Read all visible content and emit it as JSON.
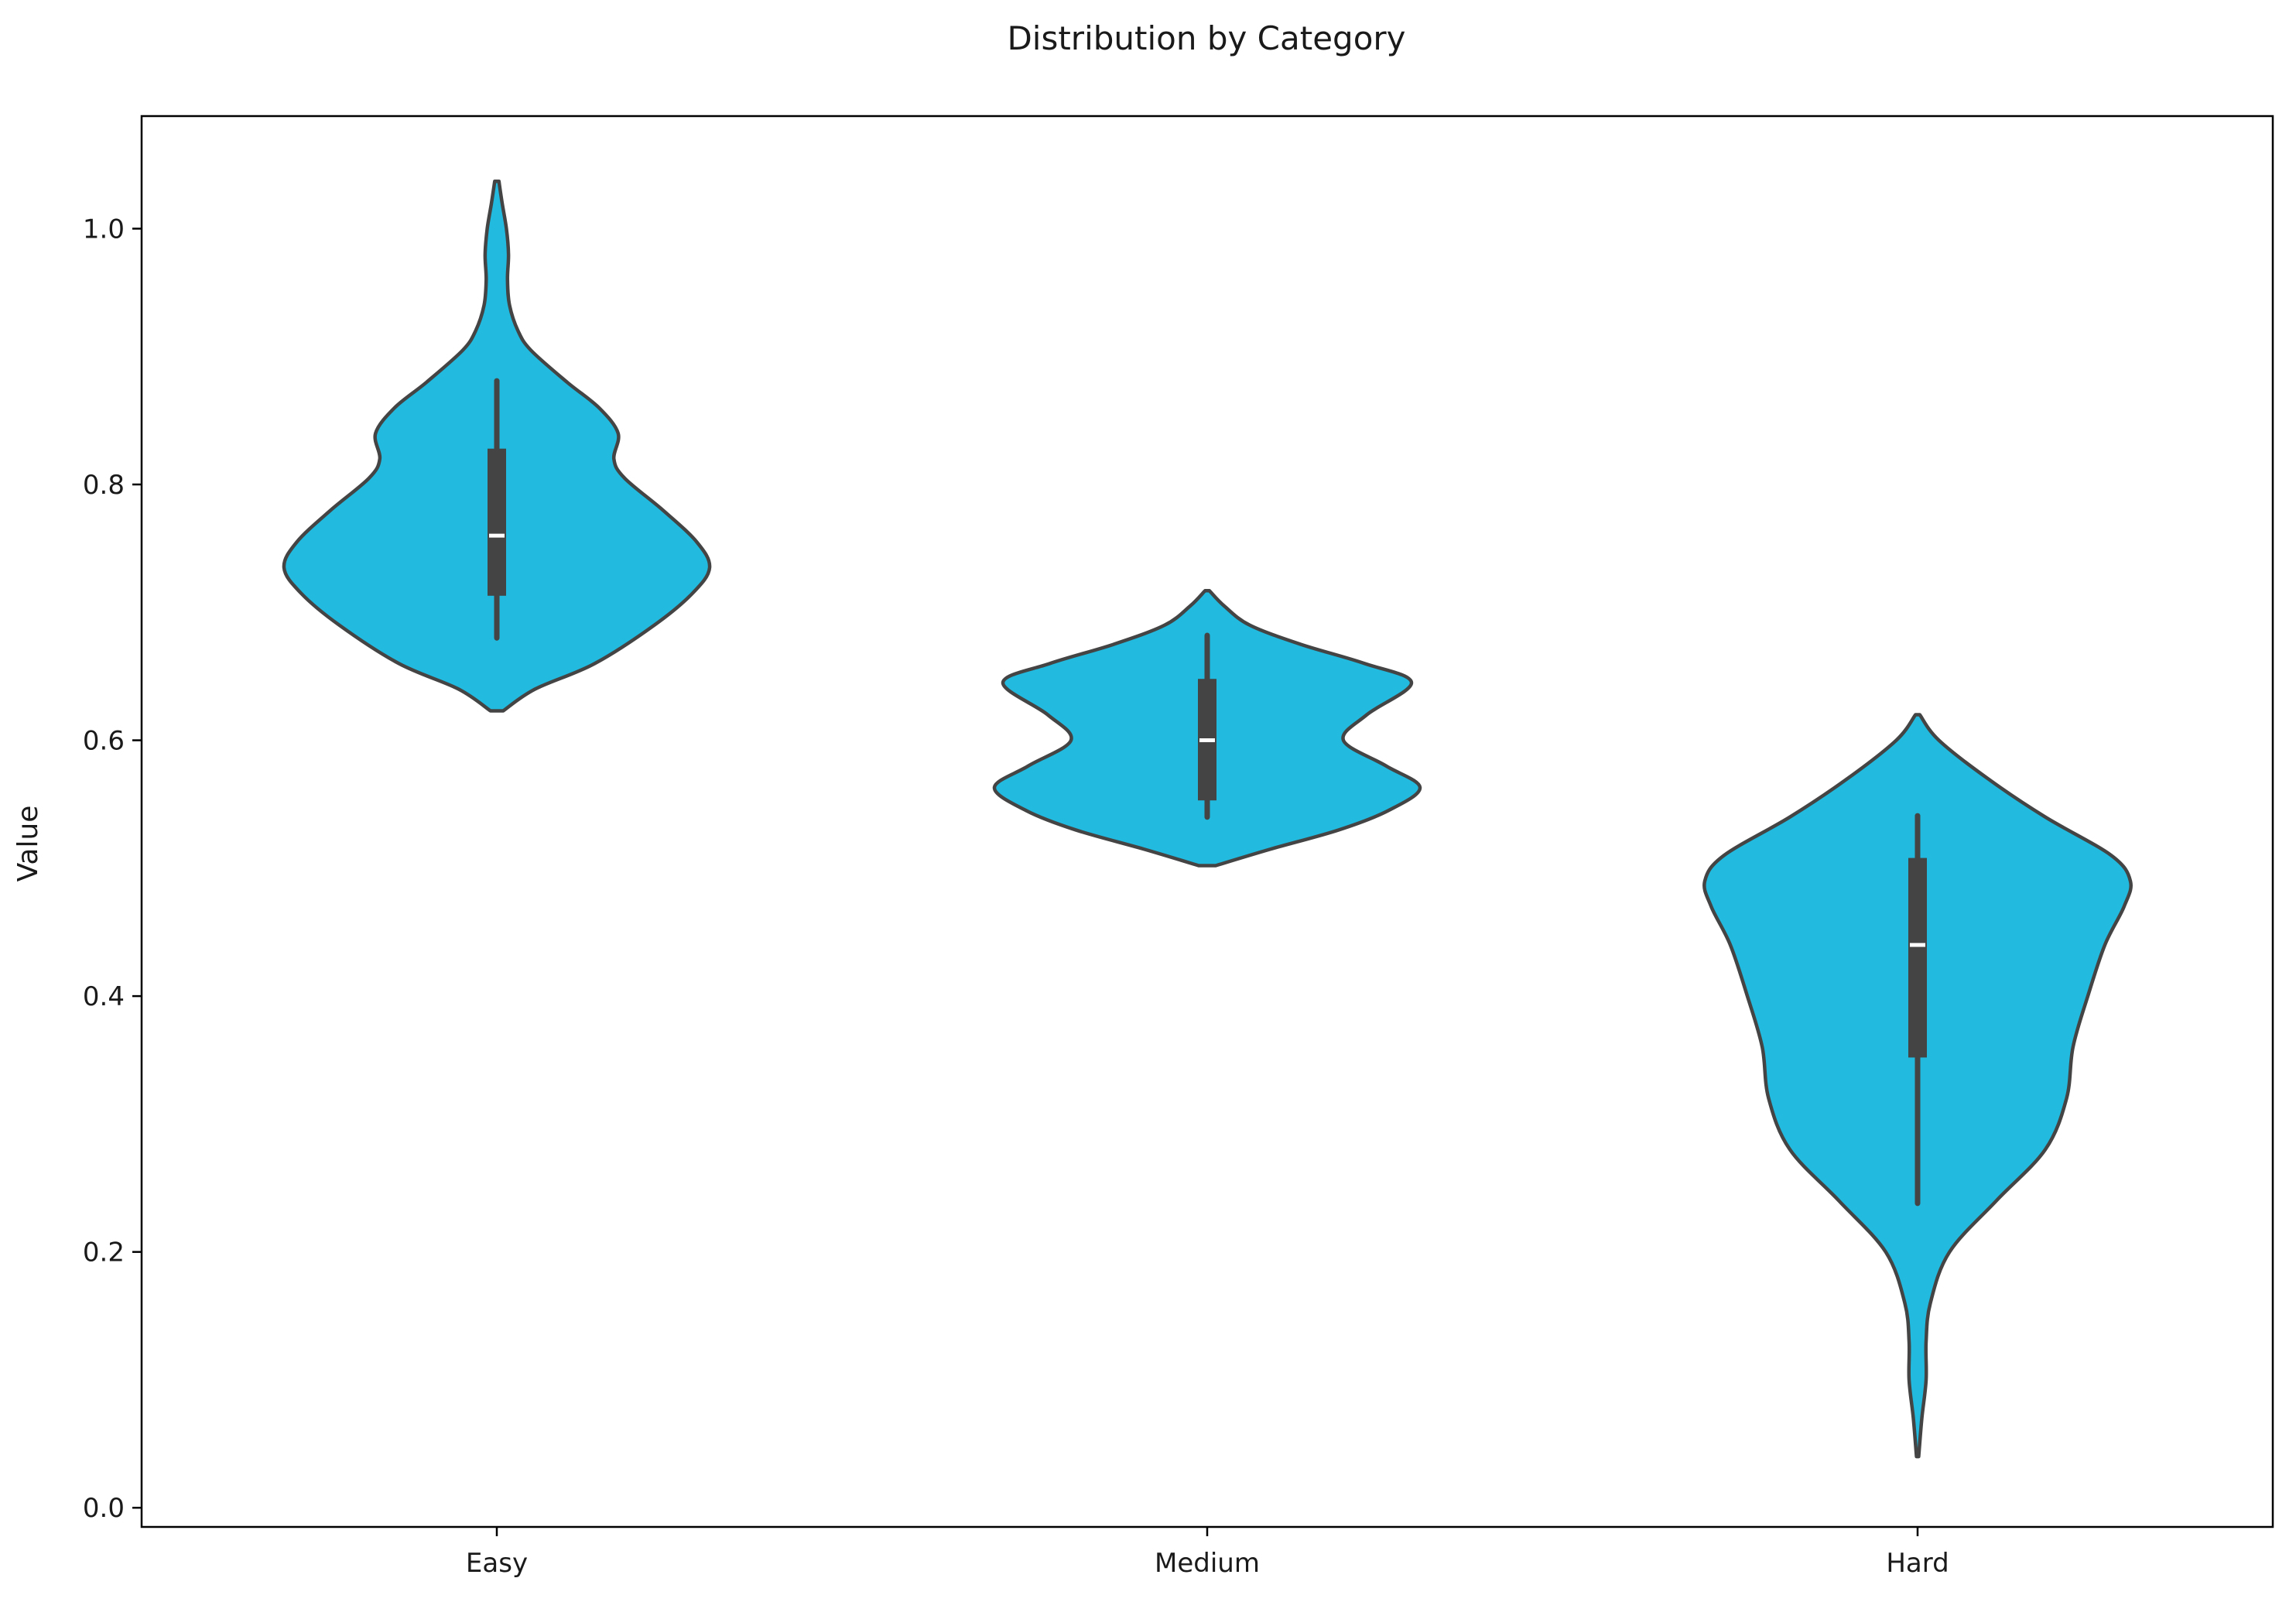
{
  "chart_data": {
    "type": "violin",
    "title": "Distribution by Category",
    "xlabel": "",
    "ylabel": "Value",
    "ylim": [
      -0.015,
      1.088
    ],
    "yticks": [
      0.0,
      0.2,
      0.4,
      0.6,
      0.8,
      1.0
    ],
    "ytick_labels": [
      "0.0",
      "0.2",
      "0.4",
      "0.6",
      "0.8",
      "1.0"
    ],
    "categories": [
      "Easy",
      "Medium",
      "Hard"
    ],
    "grid": false,
    "colors": {
      "fill": "#22bade",
      "edge": "#444444",
      "box": "#444444",
      "median": "#ffffff"
    },
    "violins": [
      {
        "category": "Easy",
        "min": 0.623,
        "max": 1.037,
        "whisker_low": 0.68,
        "q1": 0.713,
        "median": 0.76,
        "q3": 0.828,
        "whisker_high": 0.881,
        "density_profile": [
          [
            0.623,
            0.03
          ],
          [
            0.64,
            0.18
          ],
          [
            0.66,
            0.46
          ],
          [
            0.69,
            0.74
          ],
          [
            0.715,
            0.92
          ],
          [
            0.735,
            1.0
          ],
          [
            0.755,
            0.94
          ],
          [
            0.78,
            0.78
          ],
          [
            0.805,
            0.6
          ],
          [
            0.82,
            0.55
          ],
          [
            0.84,
            0.57
          ],
          [
            0.86,
            0.48
          ],
          [
            0.88,
            0.33
          ],
          [
            0.905,
            0.16
          ],
          [
            0.92,
            0.1
          ],
          [
            0.94,
            0.06
          ],
          [
            0.96,
            0.05
          ],
          [
            0.98,
            0.055
          ],
          [
            1.0,
            0.045
          ],
          [
            1.02,
            0.025
          ],
          [
            1.037,
            0.01
          ]
        ]
      },
      {
        "category": "Medium",
        "min": 0.502,
        "max": 0.717,
        "whisker_low": 0.54,
        "q1": 0.553,
        "median": 0.6,
        "q3": 0.648,
        "whisker_high": 0.682,
        "density_profile": [
          [
            0.502,
            0.04
          ],
          [
            0.515,
            0.3
          ],
          [
            0.53,
            0.62
          ],
          [
            0.545,
            0.85
          ],
          [
            0.563,
            1.0
          ],
          [
            0.58,
            0.84
          ],
          [
            0.6,
            0.64
          ],
          [
            0.62,
            0.75
          ],
          [
            0.645,
            0.96
          ],
          [
            0.66,
            0.74
          ],
          [
            0.675,
            0.44
          ],
          [
            0.69,
            0.2
          ],
          [
            0.705,
            0.08
          ],
          [
            0.717,
            0.01
          ]
        ]
      },
      {
        "category": "Hard",
        "min": 0.04,
        "max": 0.62,
        "whisker_low": 0.238,
        "q1": 0.352,
        "median": 0.44,
        "q3": 0.508,
        "whisker_high": 0.541,
        "density_profile": [
          [
            0.04,
            0.005
          ],
          [
            0.07,
            0.02
          ],
          [
            0.1,
            0.04
          ],
          [
            0.13,
            0.04
          ],
          [
            0.16,
            0.06
          ],
          [
            0.2,
            0.15
          ],
          [
            0.24,
            0.37
          ],
          [
            0.28,
            0.6
          ],
          [
            0.32,
            0.7
          ],
          [
            0.36,
            0.73
          ],
          [
            0.4,
            0.8
          ],
          [
            0.44,
            0.88
          ],
          [
            0.47,
            0.97
          ],
          [
            0.49,
            1.0
          ],
          [
            0.51,
            0.91
          ],
          [
            0.54,
            0.6
          ],
          [
            0.57,
            0.33
          ],
          [
            0.6,
            0.1
          ],
          [
            0.62,
            0.01
          ]
        ]
      }
    ]
  }
}
